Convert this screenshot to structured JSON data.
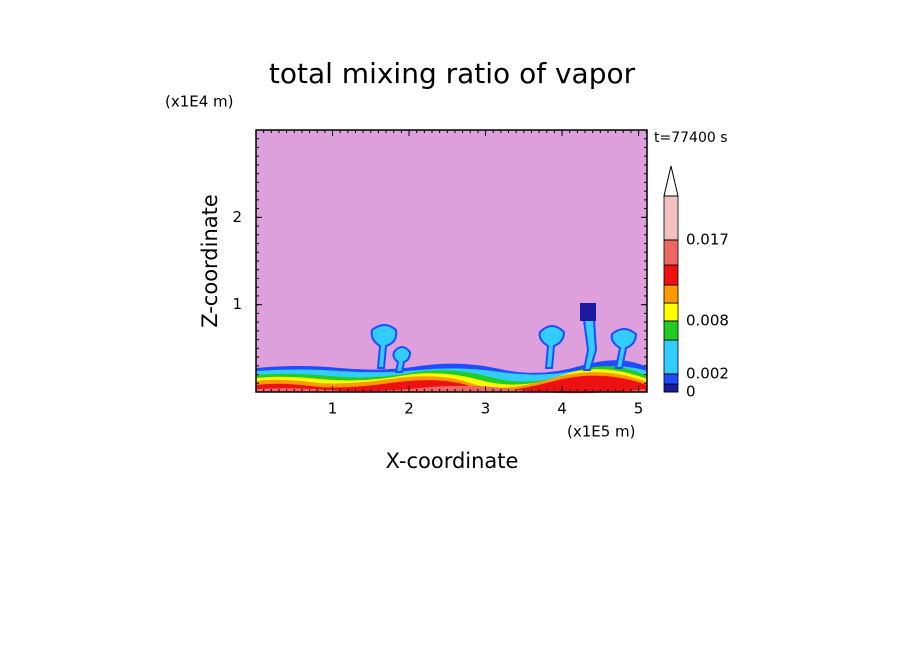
{
  "chart_data": {
    "type": "contour",
    "title": "total mixing ratio of vapor",
    "xlabel": "X-coordinate",
    "ylabel": "Z-coordinate",
    "xunit": "(x1E5 m)",
    "yunit": "(x1E4 m)",
    "time_label": "t=77400 s",
    "xlim": [
      0,
      5.11
    ],
    "ylim": [
      0,
      3.0
    ],
    "xticks": [
      1,
      2,
      3,
      4,
      5
    ],
    "yticks": [
      1,
      2
    ],
    "background_color": "#dda0dd",
    "colorbar": {
      "levels": [
        0,
        0.001,
        0.002,
        0.005,
        0.008,
        0.011,
        0.013,
        0.015,
        0.017,
        0.02
      ],
      "colors": [
        "#1a1aa0",
        "#1e4cff",
        "#33ccff",
        "#22cc22",
        "#ffff00",
        "#ff9900",
        "#ee1111",
        "#ee6666",
        "#f5c0c0"
      ],
      "ticks": [
        0,
        0.002,
        0.008,
        0.017
      ]
    }
  }
}
